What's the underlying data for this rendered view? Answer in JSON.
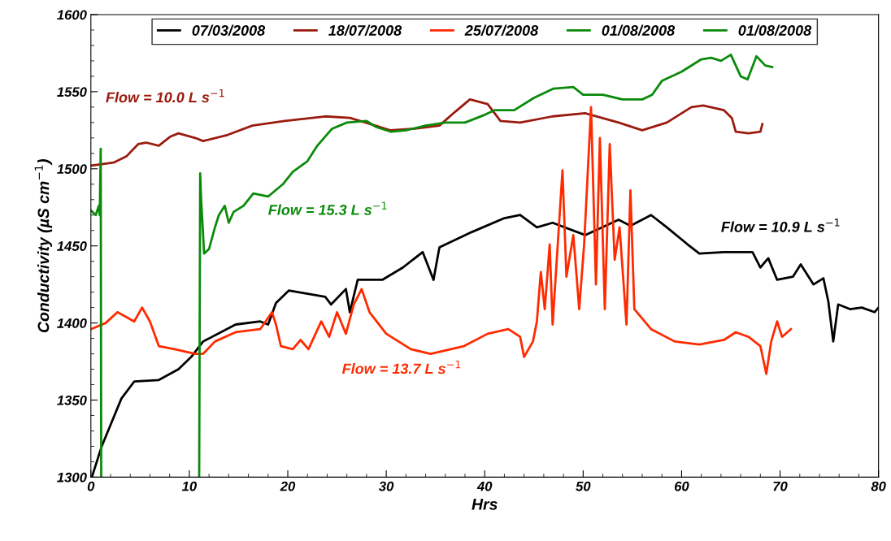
{
  "chart_data": {
    "type": "line",
    "xlabel": "Hrs",
    "ylabel": "Conductivity (µS cm$^{−1}$)",
    "xlim": [
      0,
      80
    ],
    "ylim": [
      1300,
      1600
    ],
    "xticks": [
      0,
      10,
      20,
      30,
      40,
      50,
      60,
      70,
      80
    ],
    "yticks": [
      1300,
      1350,
      1400,
      1450,
      1500,
      1550,
      1600
    ],
    "grid": false,
    "legend": "top",
    "marker": "none",
    "line_style": "solid",
    "annotations": [
      "Flow = 10.0 L s$^{−1}$",
      "Flow = 15.3 L s$^{−1}$",
      "Flow = 13.7 L s$^{−1}$",
      "Flow = 10.9 L s$^{−1}$"
    ],
    "series": [
      {
        "name": "07/03/2008",
        "color": "#000000",
        "x": [
          0.1,
          1.1,
          3.1,
          4.4,
          6.9,
          8.9,
          10.2,
          11.4,
          14.7,
          17.2,
          18,
          18.8,
          20.1,
          23.8,
          24.4,
          25.9,
          26.3,
          27.1,
          29.6,
          31.7,
          33.7,
          34.8,
          35.4,
          38.7,
          42,
          43.6,
          45.3,
          46.9,
          50.2,
          51.9,
          53.6,
          54.8,
          56.9,
          58.5,
          60.6,
          61.8,
          64.3,
          67.2,
          68,
          68.8,
          69.7,
          71.3,
          72.1,
          73.4,
          74.4,
          74.9,
          75.4,
          75.9,
          77.1,
          78.3,
          79.6,
          80
        ],
        "values": [
          1300,
          1320,
          1351,
          1362,
          1363,
          1370,
          1378,
          1388,
          1399,
          1401,
          1399,
          1413,
          1421,
          1417,
          1412,
          1422,
          1407,
          1428,
          1428,
          1436,
          1446,
          1428,
          1449,
          1459,
          1468,
          1470,
          1462,
          1465,
          1457,
          1462,
          1467,
          1463,
          1470,
          1462,
          1451,
          1445,
          1446,
          1446,
          1436,
          1442,
          1428,
          1430,
          1438,
          1425,
          1429,
          1414,
          1388,
          1412,
          1409,
          1410,
          1407,
          1410
        ]
      },
      {
        "name": "18/07/2008",
        "color": "#9b1b0f",
        "x": [
          0,
          2.3,
          3.6,
          4.8,
          5.6,
          6.9,
          8.1,
          8.9,
          10.6,
          11.4,
          13.9,
          16.4,
          19.7,
          23.8,
          26.3,
          27.9,
          30.4,
          32.9,
          35.4,
          37,
          38.5,
          40.3,
          41.6,
          43.6,
          46.9,
          50.2,
          53.6,
          56,
          58.5,
          61,
          62.2,
          64.3,
          65.1,
          65.5,
          66.8,
          68,
          68.2
        ],
        "values": [
          1502,
          1504,
          1508,
          1516,
          1517,
          1515,
          1521,
          1523,
          1520,
          1518,
          1522,
          1528,
          1531,
          1534,
          1533,
          1530,
          1525,
          1526,
          1528,
          1537,
          1545,
          1542,
          1531,
          1530,
          1534,
          1536,
          1530,
          1525,
          1530,
          1540,
          1541,
          1538,
          1533,
          1524,
          1523,
          1524,
          1529
        ]
      },
      {
        "name": "25/07/2008",
        "color": "#ff2a00",
        "x": [
          0,
          1.5,
          2.7,
          4.4,
          5.2,
          6,
          6.9,
          8.5,
          10.6,
          11.4,
          12.6,
          14.7,
          17.2,
          18.4,
          18.8,
          19.3,
          20.5,
          21.3,
          22.1,
          23.4,
          24.2,
          25,
          25.9,
          26.7,
          27.5,
          28.3,
          30,
          32.5,
          34.5,
          37.9,
          40.3,
          42.4,
          43.6,
          44,
          44.9,
          45.3,
          45.7,
          46.1,
          46.6,
          46.9,
          47.9,
          48.3,
          49,
          49.6,
          50.1,
          50.8,
          51.3,
          51.7,
          52.2,
          52.7,
          53.2,
          53.7,
          54.4,
          54.8,
          55.2,
          56.9,
          59.3,
          61.8,
          64.3,
          65.5,
          66.8,
          68,
          68.6,
          69.1,
          69.7,
          70.2,
          71.1
        ],
        "values": [
          1396,
          1400,
          1407,
          1401,
          1410,
          1401,
          1385,
          1383,
          1380,
          1380,
          1388,
          1394,
          1396,
          1407,
          1399,
          1385,
          1383,
          1389,
          1383,
          1401,
          1391,
          1407,
          1393,
          1412,
          1422,
          1407,
          1393,
          1383,
          1380,
          1385,
          1393,
          1396,
          1391,
          1378,
          1388,
          1401,
          1433,
          1409,
          1451,
          1399,
          1499,
          1430,
          1457,
          1409,
          1451,
          1540,
          1425,
          1520,
          1409,
          1516,
          1441,
          1462,
          1399,
          1486,
          1409,
          1396,
          1388,
          1386,
          1389,
          1394,
          1391,
          1385,
          1367,
          1388,
          1401,
          1391,
          1396
        ]
      },
      {
        "name": "01/08/2008",
        "color": "#0a8a0a",
        "x": [
          0,
          0.5,
          0.8,
          0.9,
          1.0,
          1.05
        ],
        "values": [
          1473,
          1470,
          1476,
          1470,
          1513,
          1300
        ]
      },
      {
        "name": "01/08/2008",
        "color": "#0a8a0a",
        "x": [
          11.0,
          11.1,
          11.2,
          11.5,
          12,
          12.6,
          13,
          13.6,
          14,
          14.5,
          15.5,
          16.5,
          18,
          19.5,
          20.5,
          22,
          23,
          24.5,
          26,
          28,
          29,
          30.5,
          32,
          34,
          36,
          38,
          40,
          41,
          43,
          45,
          47,
          49,
          50,
          52,
          54,
          56,
          57,
          58,
          60,
          62,
          63,
          64,
          65,
          66,
          66.7,
          67.6,
          68.5,
          69.2
        ],
        "values": [
          1300,
          1497,
          1480,
          1445,
          1448,
          1462,
          1470,
          1476,
          1465,
          1472,
          1476,
          1484,
          1482,
          1490,
          1498,
          1505,
          1515,
          1526,
          1530,
          1531,
          1527,
          1524,
          1525,
          1528,
          1530,
          1530,
          1535,
          1538,
          1538,
          1546,
          1552,
          1553,
          1548,
          1548,
          1545,
          1545,
          1548,
          1557,
          1563,
          1571,
          1572,
          1570,
          1574,
          1560,
          1558,
          1573,
          1567,
          1566
        ]
      }
    ]
  }
}
